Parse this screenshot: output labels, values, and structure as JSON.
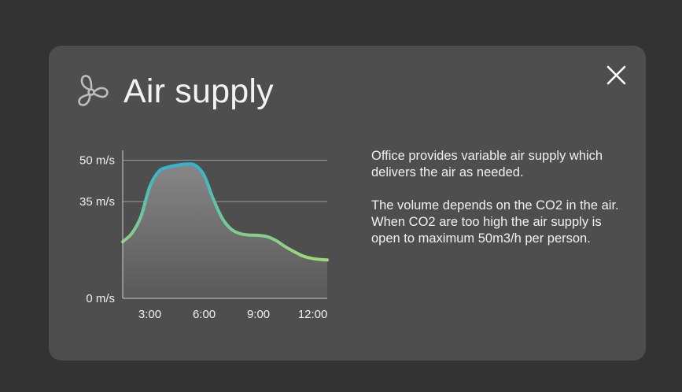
{
  "card": {
    "title": "Air supply",
    "icon": "fan-icon",
    "close_icon": "close-icon"
  },
  "description": {
    "paragraph1": "Office provides variable air supply which delivers the air as needed.",
    "paragraph2": "The volume depends on the CO2 in the air. When CO2 are too high the air supply is open to maximum 50m3/h per person."
  },
  "colors": {
    "background": "#333333",
    "card": "#4e4e4e",
    "line_start": "#30b4d0",
    "line_end": "#9fd876"
  },
  "chart_data": {
    "type": "area",
    "title": "",
    "xlabel": "",
    "ylabel": "",
    "x_ticks": [
      "3:00",
      "6:00",
      "9:00",
      "12:00"
    ],
    "y_ticks": [
      {
        "value": 50,
        "label": "50 m/s"
      },
      {
        "value": 35,
        "label": "35 m/s"
      },
      {
        "value": 0,
        "label": "0 m/s"
      }
    ],
    "xlim": [
      1.5,
      12.8
    ],
    "ylim": [
      0,
      53
    ],
    "grid": true,
    "series": [
      {
        "x": [
          1.5,
          2.0,
          2.5,
          3.0,
          3.5,
          4.0,
          4.5,
          5.0,
          5.5,
          6.0,
          6.5,
          7.0,
          7.5,
          8.0,
          8.5,
          9.0,
          9.5,
          10.0,
          10.5,
          11.0,
          11.5,
          12.0,
          12.5,
          12.8
        ],
        "values": [
          20.5,
          23.5,
          29.5,
          40.5,
          46.0,
          47.5,
          48.2,
          48.6,
          48.2,
          44.5,
          36.0,
          29.0,
          25.0,
          23.4,
          22.9,
          22.8,
          22.3,
          20.8,
          18.6,
          16.8,
          15.2,
          14.4,
          14.0,
          13.9
        ]
      }
    ]
  }
}
